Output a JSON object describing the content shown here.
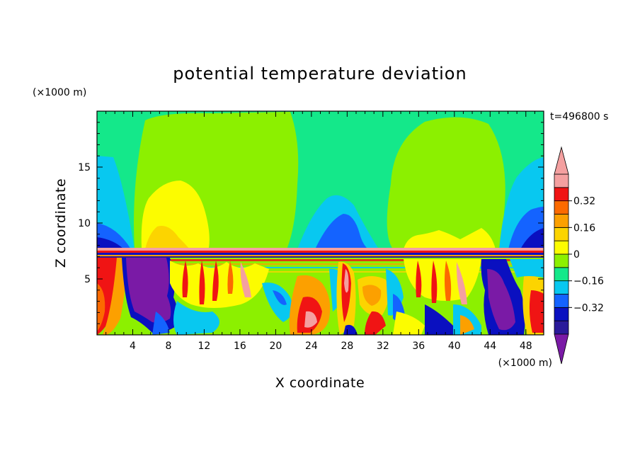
{
  "chart_data": {
    "type": "heatmap",
    "title": "potential temperature deviation",
    "xlabel": "X coordinate",
    "ylabel": "Z coordinate",
    "x_unit": "(×1000 m)",
    "y_unit": "(×1000 m)",
    "time_label": "t=496800 s",
    "xlim": [
      0,
      50
    ],
    "ylim": [
      0,
      20
    ],
    "x_ticks": [
      4,
      8,
      12,
      16,
      20,
      24,
      28,
      32,
      36,
      40,
      44,
      48
    ],
    "y_ticks": [
      5,
      10,
      15
    ],
    "colorbar": {
      "levels": [
        -0.48,
        -0.4,
        -0.32,
        -0.24,
        -0.16,
        -0.08,
        0,
        0.08,
        0.16,
        0.24,
        0.32,
        0.4,
        0.48
      ],
      "colors": [
        "#7a1aa6",
        "#2a1a9a",
        "#0a10c0",
        "#1463ff",
        "#08c8f0",
        "#14e88a",
        "#8cf000",
        "#fcfc00",
        "#fcd400",
        "#fca000",
        "#fc6a00",
        "#f01414",
        "#f4a0a0",
        "#f4a0a0"
      ],
      "labeled": [
        0.32,
        0.16,
        0,
        -0.16,
        -0.32
      ],
      "tick_labels": [
        "0.32",
        "0.16",
        "0",
        "−0.16",
        "−0.32"
      ]
    }
  }
}
